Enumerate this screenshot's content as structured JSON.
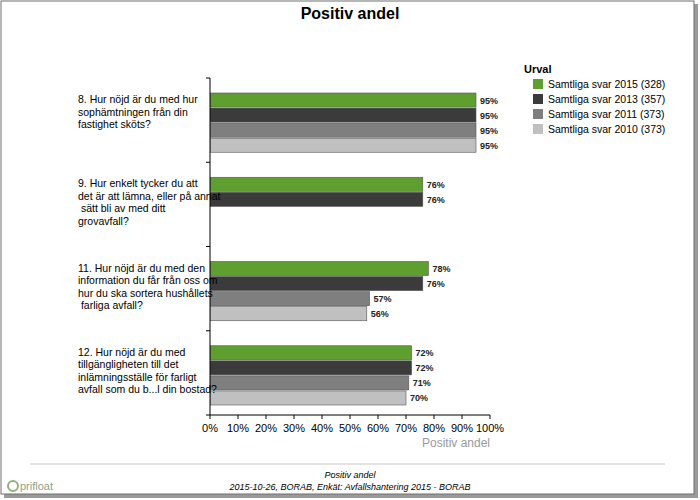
{
  "chart_data": {
    "type": "bar",
    "orientation": "horizontal",
    "title": "Positiv andel",
    "x_label": "Positiv andel",
    "legend_title": "Urval",
    "legend": "right",
    "grid": false,
    "data_labels": true,
    "categories": [
      "8. Hur nöjd är du med hur\nsophämtningen från din\nfastighet sköts?",
      "9. Hur enkelt tycker du att\ndet är att lämna, eller på annat\n sätt bli av med ditt\ngrovavfall?",
      "11. Hur nöjd är du med den\ninformation du får från oss om\nhur du ska sortera hushållets\n farliga avfall?",
      "12. Hur nöjd är du med\ntillgängligheten till det\ninlämningsställe för farligt\navfall som du b...l din bostad?"
    ],
    "series": [
      {
        "name": "Samtliga svar 2015 (328)",
        "color": "#5e9f30",
        "values": [
          95,
          76,
          78,
          72
        ],
        "value_labels": [
          "95%",
          "76%",
          "78%",
          "72%"
        ]
      },
      {
        "name": "Samtliga svar 2013 (357)",
        "color": "#3b3b3b",
        "values": [
          95,
          76,
          76,
          72
        ],
        "value_labels": [
          "95%",
          "76%",
          "76%",
          "72%"
        ]
      },
      {
        "name": "Samtliga svar 2011 (373)",
        "color": "#7f7f7f",
        "values": [
          95,
          null,
          57,
          71
        ],
        "value_labels": [
          "95%",
          null,
          "57%",
          "71%"
        ]
      },
      {
        "name": "Samtliga svar 2010 (373)",
        "color": "#c0c0c0",
        "values": [
          95,
          null,
          56,
          70
        ],
        "value_labels": [
          "95%",
          null,
          "56%",
          "70%"
        ]
      }
    ],
    "xlim": [
      0,
      100
    ],
    "xticks": [
      {
        "value": 0,
        "label": "0%"
      },
      {
        "value": 10,
        "label": "10%"
      },
      {
        "value": 20,
        "label": "20%"
      },
      {
        "value": 30,
        "label": "30%"
      },
      {
        "value": 40,
        "label": "40%"
      },
      {
        "value": 50,
        "label": "50%"
      },
      {
        "value": 60,
        "label": "60%"
      },
      {
        "value": 70,
        "label": "70%"
      },
      {
        "value": 80,
        "label": "80%"
      },
      {
        "value": 90,
        "label": "90%"
      },
      {
        "value": 100,
        "label": "100%"
      }
    ],
    "annotations": [
      "Positiv andel",
      "2015-10-26, BORAB, Enkät: Avfallshantering 2015 - BORAB",
      "prifloat"
    ]
  }
}
